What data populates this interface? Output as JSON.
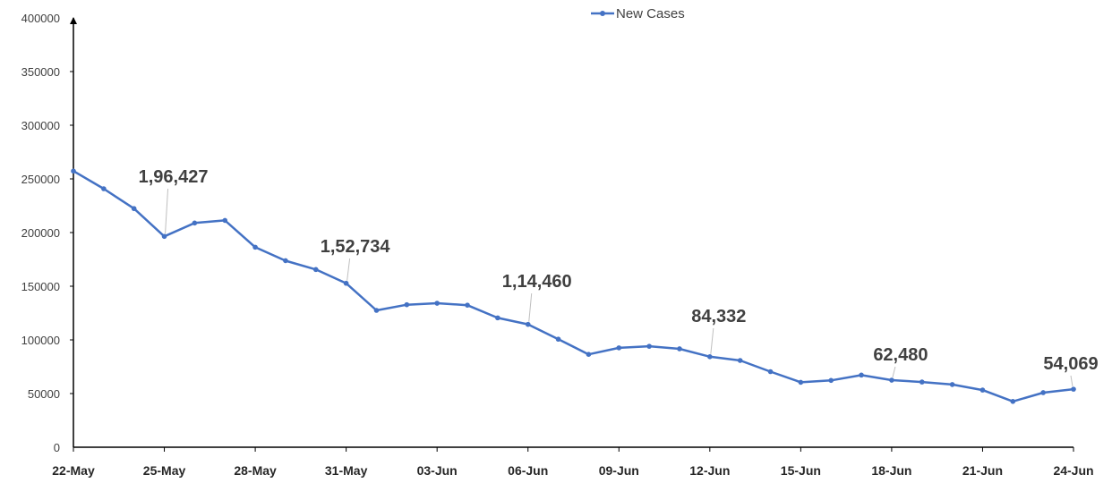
{
  "chart_data": {
    "type": "line",
    "title": "",
    "xlabel": "",
    "ylabel": "",
    "ylim": [
      0,
      400000
    ],
    "yticks": [
      "0",
      "50000",
      "100000",
      "150000",
      "200000",
      "250000",
      "300000",
      "350000",
      "400000"
    ],
    "x": [
      "22-May",
      "23-May",
      "24-May",
      "25-May",
      "26-May",
      "27-May",
      "28-May",
      "29-May",
      "30-May",
      "31-May",
      "01-Jun",
      "02-Jun",
      "03-Jun",
      "04-Jun",
      "05-Jun",
      "06-Jun",
      "07-Jun",
      "08-Jun",
      "09-Jun",
      "10-Jun",
      "11-Jun",
      "12-Jun",
      "13-Jun",
      "14-Jun",
      "15-Jun",
      "16-Jun",
      "17-Jun",
      "18-Jun",
      "19-Jun",
      "20-Jun",
      "21-Jun",
      "22-Jun",
      "23-Jun",
      "24-Jun"
    ],
    "xtick_labels": [
      "22-May",
      "25-May",
      "28-May",
      "31-May",
      "03-Jun",
      "06-Jun",
      "09-Jun",
      "12-Jun",
      "15-Jun",
      "18-Jun",
      "21-Jun",
      "24-Jun"
    ],
    "series": [
      {
        "name": "New Cases",
        "color": "#4472C4",
        "values": [
          257299,
          240842,
          222315,
          196427,
          208921,
          211298,
          186364,
          173790,
          165553,
          152734,
          127510,
          132788,
          134154,
          132364,
          120529,
          114460,
          100636,
          86498,
          92596,
          94052,
          91702,
          84332,
          80834,
          70421,
          60471,
          62224,
          67208,
          62480,
          60753,
          58419,
          53256,
          42640,
          50848,
          54069
        ]
      }
    ],
    "annotations": [
      {
        "x": "25-May",
        "value": 196427,
        "text": "1,96,427"
      },
      {
        "x": "31-May",
        "value": 152734,
        "text": "1,52,734"
      },
      {
        "x": "06-Jun",
        "value": 114460,
        "text": "1,14,460"
      },
      {
        "x": "12-Jun",
        "value": 84332,
        "text": "84,332"
      },
      {
        "x": "18-Jun",
        "value": 62480,
        "text": "62,480"
      },
      {
        "x": "24-Jun",
        "value": 54069,
        "text": "54,069"
      }
    ],
    "legend": "top-center",
    "grid": false
  }
}
